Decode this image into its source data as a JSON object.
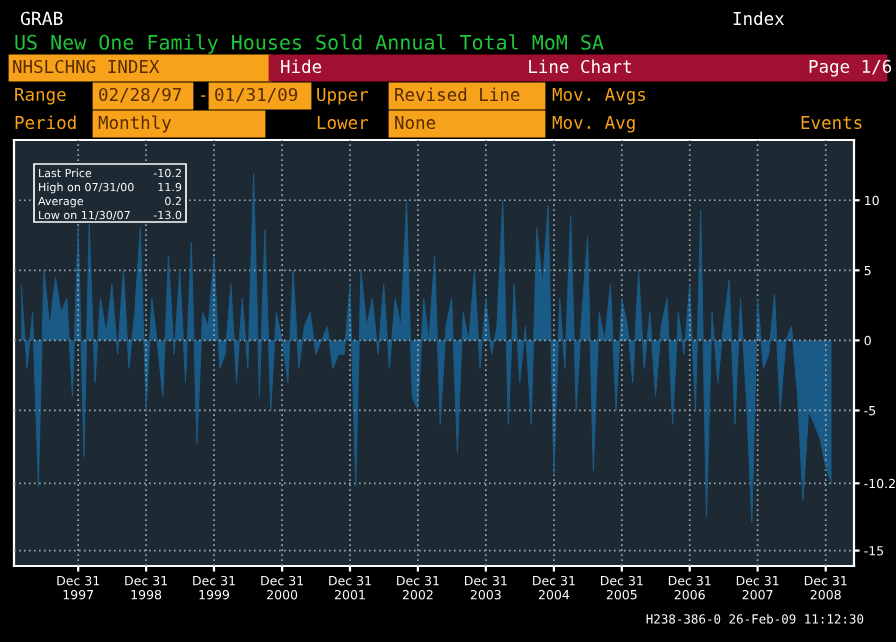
{
  "chart_data": {
    "type": "area",
    "title": "US New One Family Houses Sold Annual Total MoM SA",
    "x": [
      "1997-02-28",
      "1997-03-31",
      "1997-04-30",
      "1997-05-31",
      "1997-06-30",
      "1997-07-31",
      "1997-08-31",
      "1997-09-30",
      "1997-10-31",
      "1997-11-30",
      "1997-12-31",
      "1998-01-31",
      "1998-02-28",
      "1998-03-31",
      "1998-04-30",
      "1998-05-31",
      "1998-06-30",
      "1998-07-31",
      "1998-08-31",
      "1998-09-30",
      "1998-10-31",
      "1998-11-30",
      "1998-12-31",
      "1999-01-31",
      "1999-02-28",
      "1999-03-31",
      "1999-04-30",
      "1999-05-31",
      "1999-06-30",
      "1999-07-31",
      "1999-08-31",
      "1999-09-30",
      "1999-10-31",
      "1999-11-30",
      "1999-12-31",
      "2000-01-31",
      "2000-02-29",
      "2000-03-31",
      "2000-04-30",
      "2000-05-31",
      "2000-06-30",
      "2000-07-31",
      "2000-08-31",
      "2000-09-30",
      "2000-10-31",
      "2000-11-30",
      "2000-12-31",
      "2001-01-31",
      "2001-02-28",
      "2001-03-31",
      "2001-04-30",
      "2001-05-31",
      "2001-06-30",
      "2001-07-31",
      "2001-08-31",
      "2001-09-30",
      "2001-10-31",
      "2001-11-30",
      "2001-12-31",
      "2002-01-31",
      "2002-02-28",
      "2002-03-31",
      "2002-04-30",
      "2002-05-31",
      "2002-06-30",
      "2002-07-31",
      "2002-08-31",
      "2002-09-30",
      "2002-10-31",
      "2002-11-30",
      "2002-12-31",
      "2003-01-31",
      "2003-02-28",
      "2003-03-31",
      "2003-04-30",
      "2003-05-31",
      "2003-06-30",
      "2003-07-31",
      "2003-08-31",
      "2003-09-30",
      "2003-10-31",
      "2003-11-30",
      "2003-12-31",
      "2004-01-31",
      "2004-02-29",
      "2004-03-31",
      "2004-04-30",
      "2004-05-31",
      "2004-06-30",
      "2004-07-31",
      "2004-08-31",
      "2004-09-30",
      "2004-10-31",
      "2004-11-30",
      "2004-12-31",
      "2005-01-31",
      "2005-02-28",
      "2005-03-31",
      "2005-04-30",
      "2005-05-31",
      "2005-06-30",
      "2005-07-31",
      "2005-08-31",
      "2005-09-30",
      "2005-10-31",
      "2005-11-30",
      "2005-12-31",
      "2006-01-31",
      "2006-02-28",
      "2006-03-31",
      "2006-04-30",
      "2006-05-31",
      "2006-06-30",
      "2006-07-31",
      "2006-08-31",
      "2006-09-30",
      "2006-10-31",
      "2006-11-30",
      "2006-12-31",
      "2007-01-31",
      "2007-02-28",
      "2007-03-31",
      "2007-04-30",
      "2007-05-31",
      "2007-06-30",
      "2007-07-31",
      "2007-08-31",
      "2007-09-30",
      "2007-10-31",
      "2007-11-30",
      "2007-12-31",
      "2008-01-31",
      "2008-02-29",
      "2008-03-31",
      "2008-04-30",
      "2008-05-31",
      "2008-06-30",
      "2008-07-31",
      "2008-08-31",
      "2008-09-30",
      "2008-10-31",
      "2008-11-30",
      "2008-12-31",
      "2009-01-31"
    ],
    "series": [
      {
        "color": "#1a5a86",
        "values": [
          3.9,
          -2,
          2,
          -10.4,
          5,
          1,
          4.5,
          2,
          3,
          -4,
          8.1,
          -8.3,
          8.3,
          -3,
          3,
          0.5,
          4,
          -1,
          5,
          -2,
          2,
          8.1,
          -5,
          3,
          0,
          -4,
          6,
          -1,
          5,
          -3,
          7,
          -7.4,
          2,
          1,
          6,
          -2,
          -1,
          4,
          -3,
          3,
          -2,
          11.9,
          -4,
          7.9,
          -5,
          2,
          0,
          -3,
          5,
          -2,
          1,
          2,
          -1,
          0,
          1,
          -2,
          -1,
          -1,
          4,
          -10.4,
          5,
          1,
          3,
          -1,
          4,
          -2,
          3,
          1,
          10,
          -4,
          -5,
          3,
          0,
          6,
          -6,
          1,
          3,
          -8,
          2,
          0,
          5,
          -2,
          3,
          -1,
          1,
          10,
          -6,
          4,
          -3,
          1,
          -6,
          8,
          4,
          9.6,
          -9.6,
          3,
          -2,
          8.9,
          -5,
          2,
          7.4,
          -9.3,
          2,
          0,
          4,
          -5,
          3,
          1,
          -3,
          5,
          -2,
          2,
          -4,
          1,
          3,
          -6,
          2,
          -1,
          4,
          -5,
          9.3,
          -12.6,
          2,
          -3,
          1,
          4.3,
          -6,
          3,
          -4,
          -13.0,
          3,
          -2,
          -1,
          3.3,
          -5,
          0,
          1,
          -3.6,
          -11.4,
          -5,
          -6,
          -7,
          -9,
          -10.2
        ]
      }
    ],
    "xlim": [
      "1997-01-20",
      "2009-06-01"
    ],
    "xticks": [
      {
        "value": "1997-12-31",
        "label": "Dec 31\n1997"
      },
      {
        "value": "1998-12-31",
        "label": "Dec 31\n1998"
      },
      {
        "value": "1999-12-31",
        "label": "Dec 31\n1999"
      },
      {
        "value": "2000-12-31",
        "label": "Dec 31\n2000"
      },
      {
        "value": "2001-12-31",
        "label": "Dec 31\n2001"
      },
      {
        "value": "2002-12-31",
        "label": "Dec 31\n2002"
      },
      {
        "value": "2003-12-31",
        "label": "Dec 31\n2003"
      },
      {
        "value": "2004-12-31",
        "label": "Dec 31\n2004"
      },
      {
        "value": "2005-12-31",
        "label": "Dec 31\n2005"
      },
      {
        "value": "2006-12-31",
        "label": "Dec 31\n2006"
      },
      {
        "value": "2007-12-31",
        "label": "Dec 31\n2007"
      },
      {
        "value": "2008-12-31",
        "label": "Dec 31\n2008"
      }
    ],
    "ylim": [
      -16.1,
      14.3
    ],
    "yticks": [
      10,
      5,
      0,
      -5,
      -10.2,
      -15
    ],
    "grid": true,
    "annotations": [
      "GRAB",
      "Index",
      "NHSLCHNG INDEX",
      "Hide",
      "Line Chart",
      "Page 1/6",
      "Range",
      "02/28/97",
      "-",
      "01/31/09",
      "Upper",
      "Revised Line",
      "Mov. Avgs",
      "Period",
      "Monthly",
      "Lower",
      "None",
      "Mov. Avg",
      "Events",
      "Last Price",
      "-10.2",
      "High on 07/31/00",
      "11.9",
      "Average",
      "0.2",
      "Low on 11/30/07",
      "-13.0",
      "H238-386-0 26-Feb-09 11:12:30"
    ]
  }
}
